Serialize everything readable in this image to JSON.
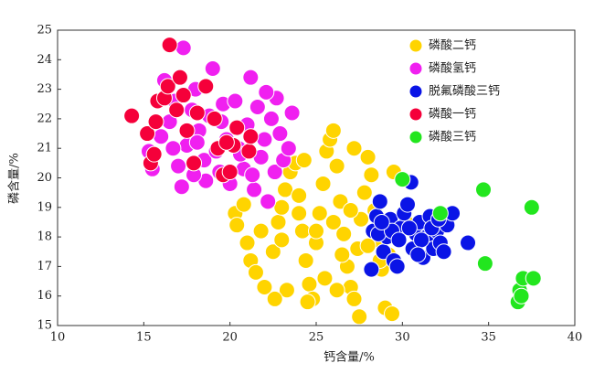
{
  "chart_data": {
    "type": "scatter",
    "x_label": "钙含量/%",
    "y_label": "磷含量/%",
    "xlim": [
      10,
      40
    ],
    "xticks": [
      10,
      15,
      20,
      25,
      30,
      35,
      40
    ],
    "ylim": [
      15,
      25
    ],
    "yticks": [
      15,
      16,
      17,
      18,
      19,
      20,
      21,
      22,
      23,
      24,
      25
    ],
    "legend": "upper right",
    "series": [
      {
        "name": "磷酸二钙",
        "color": "#ffd400",
        "x": [
          20.3,
          20.4,
          21,
          21.2,
          21.5,
          22,
          22.5,
          22.8,
          23,
          23.2,
          23.5,
          23.8,
          24,
          24.2,
          24.4,
          24.6,
          24.8,
          25,
          25.2,
          25.4,
          25.6,
          25.8,
          26,
          26.2,
          26.4,
          26.6,
          26.8,
          27,
          27.2,
          27.4,
          27.6,
          27.8,
          28,
          28.2,
          28.4,
          28.6,
          28.8,
          29,
          29.2,
          29.4,
          23.3,
          24.5,
          25.5,
          26.2,
          27.5,
          22.6,
          21.8,
          23,
          24,
          25,
          26,
          27,
          28,
          29.5,
          30.2,
          20.8,
          24.3,
          27.2,
          28.7,
          26.5
        ],
        "values": [
          18.8,
          18.4,
          17.8,
          17.2,
          16.8,
          16.3,
          17.5,
          18.5,
          19,
          19.6,
          20.2,
          20.5,
          19.4,
          18.2,
          17.2,
          16.4,
          15.9,
          17.8,
          18.8,
          19.8,
          20.9,
          21.3,
          21.6,
          20.4,
          19.2,
          18.1,
          17,
          16.3,
          15.9,
          17.6,
          18.6,
          19.5,
          20.7,
          20.1,
          18.9,
          17.9,
          16.9,
          15.6,
          17.4,
          15.4,
          16.2,
          15.8,
          16.6,
          16.2,
          15.3,
          15.9,
          18.2,
          17.9,
          18.8,
          18.2,
          18.5,
          18.9,
          17.7,
          20.2,
          18.5,
          19.1,
          20.6,
          21,
          17.2,
          17.4
        ]
      },
      {
        "name": "磷酸氢钙",
        "color": "#f020f0",
        "x": [
          15.3,
          15.5,
          16,
          16.5,
          16.8,
          17,
          17.2,
          17.5,
          17.8,
          18,
          18.2,
          18.5,
          18.8,
          19,
          19.2,
          19.4,
          19.6,
          19.8,
          20,
          20.3,
          20.5,
          20.8,
          21,
          21.2,
          21.4,
          21.6,
          21.8,
          22,
          22.2,
          22.4,
          22.6,
          22.7,
          22.9,
          23.1,
          23.4,
          23.6,
          18.6,
          17.3,
          16.2,
          19.5,
          20.6,
          18.1,
          16.7,
          21.3,
          17.9,
          22.1
        ],
        "values": [
          20.9,
          20.3,
          21.4,
          21.9,
          22.6,
          20.4,
          19.7,
          21.1,
          22.3,
          23,
          21.6,
          20.6,
          22.1,
          23.7,
          20.9,
          20.2,
          22.5,
          21.3,
          19.8,
          22.6,
          21,
          20.3,
          21.8,
          23.4,
          19.6,
          22.4,
          20.7,
          21.3,
          19.2,
          22,
          20.2,
          22.7,
          21.5,
          20.6,
          21,
          22.2,
          19.9,
          24.4,
          23.3,
          21.9,
          20.8,
          21.2,
          21,
          20.1,
          20.1,
          22.9
        ]
      },
      {
        "name": "脱氟磷酸三钙",
        "color": "#0a14e6",
        "x": [
          28.2,
          28.3,
          28.5,
          28.7,
          28.9,
          29.1,
          29.3,
          29.5,
          29.7,
          29.9,
          30.1,
          30.3,
          30.5,
          30.6,
          30.8,
          31,
          31.2,
          31.4,
          31.6,
          31.8,
          32,
          32.2,
          32.4,
          32.6,
          32.9,
          33.8,
          28.6,
          29.4,
          30.4,
          31.1,
          31.7,
          29.8,
          28.8,
          30.9,
          32.1
        ],
        "values": [
          16.9,
          18.2,
          18.7,
          19.2,
          17.5,
          18,
          18.6,
          17.2,
          17,
          18.3,
          18.8,
          19.1,
          19.85,
          17.6,
          18.1,
          18.5,
          17.3,
          18,
          18.7,
          17.6,
          18.2,
          17.8,
          17.5,
          18.4,
          18.8,
          17.8,
          18.1,
          18.2,
          18.3,
          17.9,
          18.3,
          17.9,
          18.5,
          17.4,
          18.6
        ]
      },
      {
        "name": "磷酸一钙",
        "color": "#f5003a",
        "x": [
          14.3,
          15.2,
          15.4,
          15.6,
          15.7,
          15.8,
          16.2,
          16.4,
          16.5,
          16.9,
          17.1,
          17.3,
          17.5,
          17.9,
          18.1,
          18.6,
          19.1,
          19.3,
          19.6,
          20,
          20.2,
          20.4,
          21.1,
          21.2,
          19.8
        ],
        "values": [
          22.1,
          21.5,
          20.5,
          20.8,
          21.9,
          22.6,
          22.7,
          23.1,
          24.5,
          22.3,
          23.4,
          22.8,
          21.6,
          20.5,
          22.2,
          23.1,
          22,
          21,
          20.1,
          20.2,
          21.1,
          21.7,
          20.9,
          21.4,
          21.2
        ]
      },
      {
        "name": "磷酸三钙",
        "color": "#22e61e",
        "x": [
          30,
          32.2,
          34.7,
          34.8,
          37.5,
          36.7,
          36.8,
          37,
          37.6,
          36.9
        ],
        "values": [
          19.95,
          18.8,
          19.6,
          17.1,
          19,
          15.8,
          16.2,
          16.6,
          16.6,
          16
        ]
      }
    ]
  }
}
